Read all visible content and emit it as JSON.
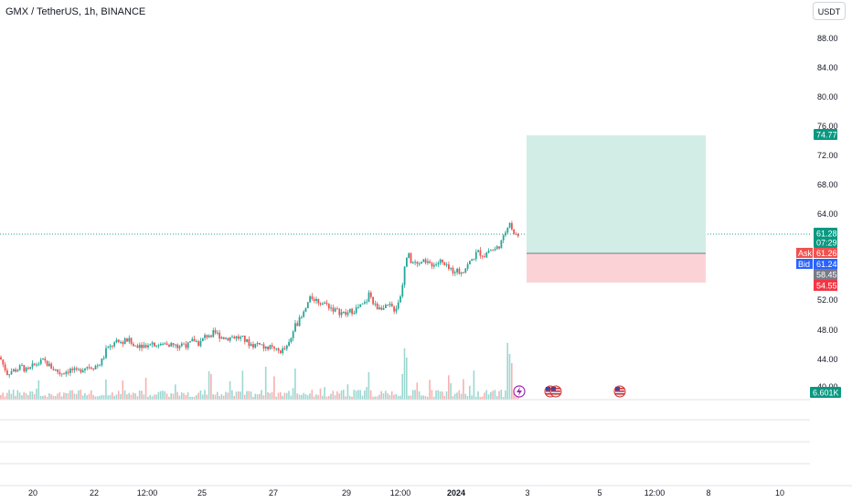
{
  "header": {
    "symbol_title": "GMX / TetherUS, 1h, BINANCE",
    "currency_button": "USDT"
  },
  "price_axis": {
    "ticks": [
      "88.00",
      "84.00",
      "80.00",
      "76.00",
      "72.00",
      "68.00",
      "64.00",
      "52.00",
      "48.00",
      "44.00",
      "40.00"
    ]
  },
  "badges": {
    "target": "74.77",
    "last_price": "61.28",
    "countdown": "07:29",
    "ask_label": "Ask",
    "ask_value": "61.26",
    "bid_label": "Bid",
    "bid_value": "61.24",
    "entry": "58.45",
    "stop": "54.55",
    "volume": "6.601K"
  },
  "time_axis": {
    "labels": [
      {
        "text": "20",
        "bold": false
      },
      {
        "text": "22",
        "bold": false
      },
      {
        "text": "12:00",
        "bold": false
      },
      {
        "text": "25",
        "bold": false
      },
      {
        "text": "27",
        "bold": false
      },
      {
        "text": "29",
        "bold": false
      },
      {
        "text": "12:00",
        "bold": false
      },
      {
        "text": "2024",
        "bold": true
      },
      {
        "text": "3",
        "bold": false
      },
      {
        "text": "5",
        "bold": false
      },
      {
        "text": "12:00",
        "bold": false
      },
      {
        "text": "8",
        "bold": false
      },
      {
        "text": "10",
        "bold": false
      }
    ]
  },
  "colors": {
    "up": "#26a69a",
    "down": "#ef5350",
    "profit_zone": "#d1ede6",
    "loss_zone": "#fbd3d6",
    "bid_blue": "#2962ff",
    "entry_gray": "#787b86"
  },
  "event_icons": [
    "lightning-event-icon",
    "us-flag-event-icon",
    "us-flag-event-icon",
    "us-flag-event-icon"
  ],
  "chart_data": {
    "type": "candlestick",
    "interval": "1h",
    "ylim": [
      40,
      90
    ],
    "close_path": [
      [
        0,
        44.8
      ],
      [
        4,
        43.6
      ],
      [
        8,
        42.6
      ],
      [
        12,
        42.9
      ],
      [
        18,
        43.1
      ],
      [
        24,
        43.5
      ],
      [
        30,
        42.8
      ],
      [
        36,
        43.6
      ],
      [
        42,
        44.0
      ],
      [
        48,
        44.3
      ],
      [
        54,
        43.6
      ],
      [
        60,
        43.1
      ],
      [
        66,
        42.6
      ],
      [
        72,
        42.9
      ],
      [
        78,
        43.1
      ],
      [
        84,
        42.7
      ],
      [
        90,
        43.3
      ],
      [
        96,
        43.6
      ],
      [
        102,
        43.5
      ],
      [
        108,
        43.8
      ],
      [
        112,
        44.4
      ],
      [
        116,
        45.7
      ],
      [
        120,
        46.1
      ],
      [
        124,
        46.6
      ],
      [
        128,
        46.8
      ],
      [
        134,
        46.9
      ],
      [
        140,
        47.2
      ],
      [
        146,
        46.3
      ],
      [
        152,
        46.6
      ],
      [
        158,
        46.4
      ],
      [
        164,
        46.9
      ],
      [
        170,
        46.6
      ],
      [
        176,
        46.4
      ],
      [
        182,
        46.8
      ],
      [
        188,
        46.5
      ],
      [
        194,
        46.2
      ],
      [
        200,
        46.7
      ],
      [
        206,
        46.4
      ],
      [
        212,
        47.2
      ],
      [
        218,
        46.6
      ],
      [
        224,
        47.6
      ],
      [
        230,
        48.0
      ],
      [
        236,
        48.1
      ],
      [
        242,
        47.6
      ],
      [
        248,
        47.4
      ],
      [
        254,
        47.6
      ],
      [
        260,
        47.5
      ],
      [
        266,
        47.3
      ],
      [
        272,
        46.7
      ],
      [
        278,
        46.4
      ],
      [
        284,
        46.9
      ],
      [
        290,
        45.8
      ],
      [
        296,
        46.1
      ],
      [
        302,
        45.6
      ],
      [
        308,
        45.7
      ],
      [
        314,
        46.1
      ],
      [
        318,
        47.1
      ],
      [
        322,
        49.0
      ],
      [
        326,
        49.6
      ],
      [
        330,
        50.2
      ],
      [
        334,
        51.3
      ],
      [
        338,
        52.6
      ],
      [
        342,
        53.0
      ],
      [
        346,
        52.6
      ],
      [
        350,
        52.3
      ],
      [
        356,
        52.1
      ],
      [
        362,
        51.6
      ],
      [
        368,
        51.1
      ],
      [
        374,
        50.9
      ],
      [
        378,
        50.6
      ],
      [
        382,
        51.0
      ],
      [
        388,
        51.3
      ],
      [
        394,
        51.7
      ],
      [
        400,
        52.2
      ],
      [
        404,
        53.6
      ],
      [
        408,
        52.2
      ],
      [
        412,
        51.6
      ],
      [
        416,
        51.9
      ],
      [
        420,
        51.4
      ],
      [
        426,
        51.8
      ],
      [
        432,
        51.3
      ],
      [
        436,
        52.5
      ],
      [
        440,
        54.2
      ],
      [
        442,
        56.8
      ],
      [
        444,
        58.7
      ],
      [
        446,
        58.9
      ],
      [
        450,
        57.8
      ],
      [
        454,
        57.6
      ],
      [
        458,
        57.3
      ],
      [
        462,
        58.0
      ],
      [
        466,
        57.5
      ],
      [
        470,
        57.8
      ],
      [
        474,
        57.4
      ],
      [
        478,
        57.6
      ],
      [
        482,
        57.9
      ],
      [
        486,
        57.3
      ],
      [
        490,
        56.9
      ],
      [
        494,
        56.5
      ],
      [
        498,
        56.8
      ],
      [
        502,
        56.4
      ],
      [
        506,
        56.7
      ],
      [
        510,
        57.1
      ],
      [
        514,
        57.8
      ],
      [
        518,
        58.4
      ],
      [
        522,
        59.2
      ],
      [
        526,
        59.0
      ],
      [
        530,
        58.7
      ],
      [
        534,
        59.4
      ],
      [
        538,
        59.5
      ],
      [
        542,
        59.5
      ],
      [
        546,
        60.1
      ],
      [
        550,
        60.8
      ],
      [
        554,
        62.4
      ],
      [
        557,
        63.6
      ],
      [
        560,
        62.3
      ],
      [
        563,
        61.6
      ],
      [
        566,
        61.6
      ],
      [
        568,
        61.3
      ]
    ],
    "horizontal_line": 61.28,
    "position": {
      "target": 74.77,
      "entry": 58.45,
      "stop": 54.55
    }
  }
}
